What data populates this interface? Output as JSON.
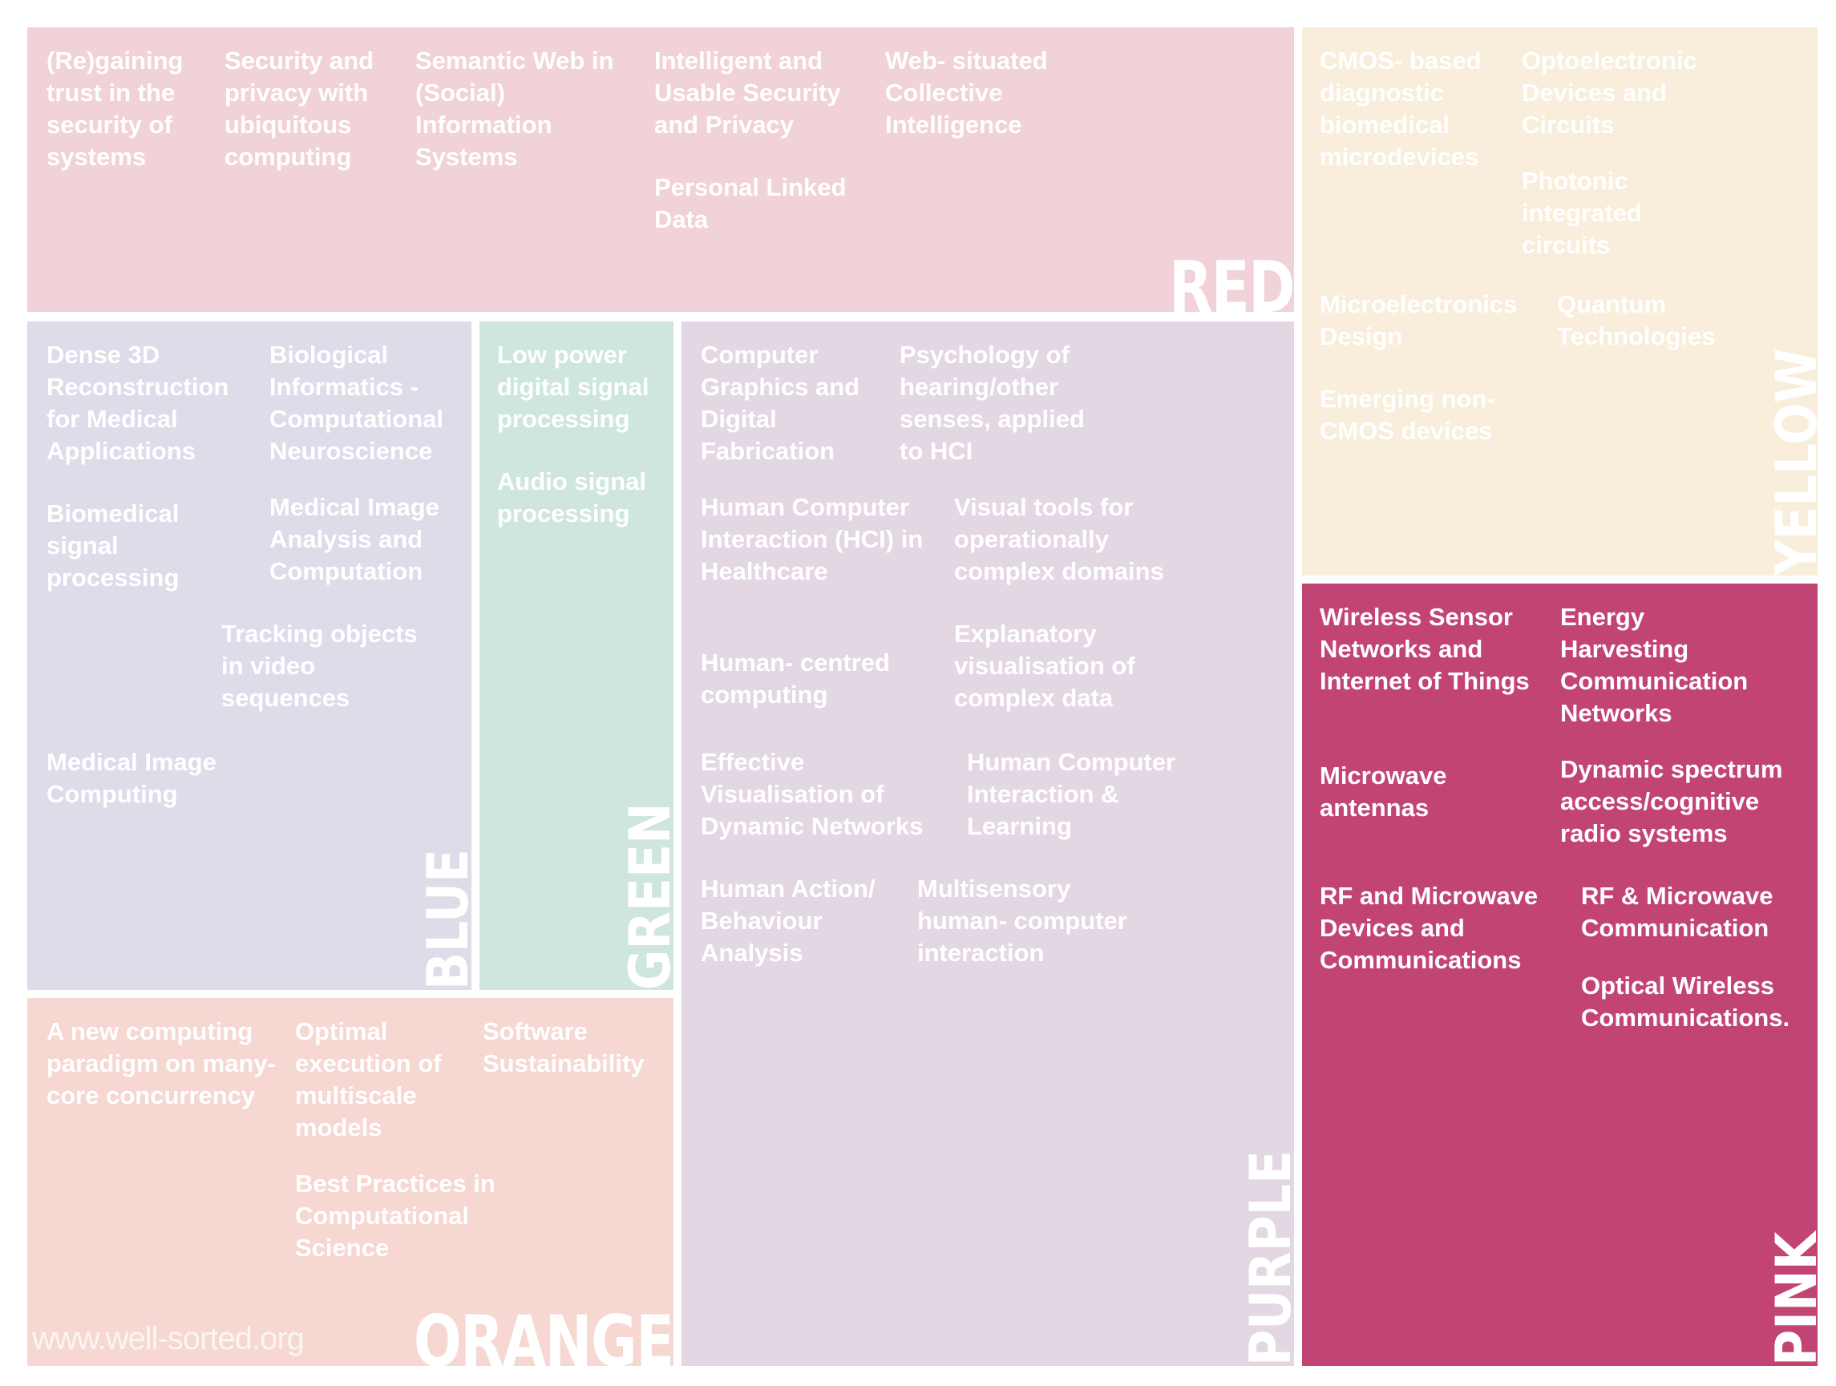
{
  "colors": {
    "red": "#f0d2d8",
    "yellow": "#f8eedb",
    "blue": "#e0dbe8",
    "green": "#cfe6e0",
    "purple": "#e3d7e3",
    "orange": "#f6d7d2",
    "pink": "#c24474"
  },
  "red": {
    "label": "RED",
    "items": [
      "(Re)gaining trust in the security of systems",
      "Security and privacy with ubiquitous computing",
      "Semantic Web in (Social) Information Systems",
      "Intelligent and Usable Security and Privacy",
      "Personal Linked Data",
      "Web- situated Collective Intelligence"
    ]
  },
  "yellow": {
    "label": "YELLOW",
    "items": [
      "CMOS- based diagnostic biomedical microdevices",
      "Optoelectronic Devices and Circuits",
      "Photonic integrated circuits",
      "Microelectronics Design",
      "Quantum Technologies",
      "Emerging non- CMOS devices"
    ]
  },
  "blue": {
    "label": "BLUE",
    "items": [
      "Dense 3D Reconstruction for Medical Applications",
      "Biological Informatics - Computational Neuroscience",
      "Biomedical signal processing",
      "Medical Image Analysis and Computation",
      "Tracking objects in video sequences",
      "Medical Image Computing"
    ]
  },
  "green": {
    "label": "GREEN",
    "items": [
      "Low power digital signal processing",
      "Audio signal processing"
    ]
  },
  "purple": {
    "label": "PURPLE",
    "items": [
      "Computer Graphics and Digital Fabrication",
      "Psychology of hearing/other senses, applied to HCI",
      "Human Computer Interaction (HCI) in Healthcare",
      "Visual tools for operationally complex domains",
      "Human- centred computing",
      "Explanatory visualisation of complex data",
      "Effective Visualisation of Dynamic Networks",
      "Human Computer Interaction & Learning",
      "Human Action/ Behaviour Analysis",
      "Multisensory human- computer interaction"
    ]
  },
  "orange": {
    "label": "ORANGE",
    "items": [
      "A new computing paradigm on many- core concurrency",
      "Optimal execution of multiscale models",
      "Software Sustainability",
      "Best Practices in Computational Science"
    ]
  },
  "pink": {
    "label": "PINK",
    "items": [
      "Wireless Sensor Networks and Internet of Things",
      "Energy Harvesting Communication Networks",
      "Microwave antennas",
      "Dynamic spectrum access/cognitive radio systems",
      "RF and Microwave Devices and Communications",
      "RF & Microwave Communication",
      "Optical Wireless Communications."
    ]
  },
  "footer": "www.well-sorted.org"
}
